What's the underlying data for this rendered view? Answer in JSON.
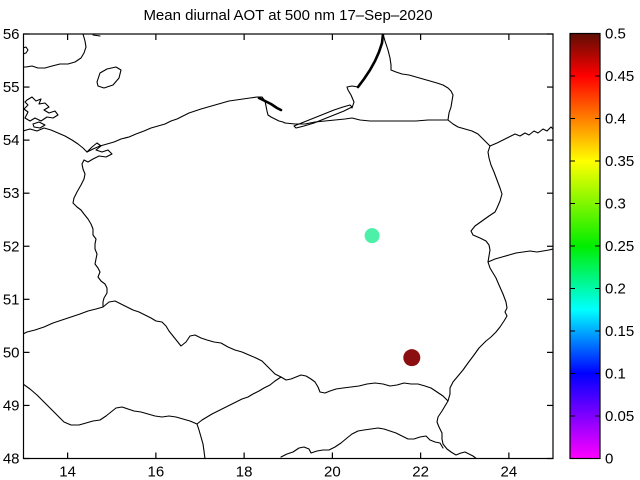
{
  "title": "Mean diurnal AOT at 500 nm 17–Sep–2020",
  "chart_data": {
    "type": "scatter",
    "title": "Mean diurnal AOT at 500 nm 17–Sep–2020",
    "map_region": "Poland with national borders and Baltic coastline",
    "grid": false,
    "legend": false,
    "x_axis": {
      "label": "",
      "range": [
        13,
        25
      ],
      "ticks": [
        14,
        16,
        18,
        20,
        22,
        24
      ],
      "tick_labels": [
        "14",
        "16",
        "18",
        "20",
        "22",
        "24"
      ]
    },
    "y_axis": {
      "label": "",
      "range": [
        48,
        56
      ],
      "ticks": [
        48,
        49,
        50,
        51,
        52,
        53,
        54,
        55,
        56
      ],
      "tick_labels": [
        "48",
        "49",
        "50",
        "51",
        "52",
        "53",
        "54",
        "55",
        "56"
      ]
    },
    "points": [
      {
        "lon": 20.9,
        "lat": 52.2,
        "value": 0.22,
        "color": "#4df0a8",
        "radius_px": 7.5
      },
      {
        "lon": 21.8,
        "lat": 49.9,
        "value": 0.5,
        "color": "#8b0e10",
        "radius_px": 8.5
      }
    ],
    "colorbar": {
      "range": [
        0,
        0.5
      ],
      "ticks": [
        0,
        0.05,
        0.1,
        0.15,
        0.2,
        0.25,
        0.3,
        0.35,
        0.4,
        0.45,
        0.5
      ],
      "tick_labels": [
        "0",
        "0.05",
        "0.1",
        "0.15",
        "0.2",
        "0.25",
        "0.3",
        "0.35",
        "0.4",
        "0.45",
        "0.5"
      ],
      "colormap_stops": [
        {
          "value": 0.0,
          "color": "#ff00ff"
        },
        {
          "value": 0.1,
          "color": "#0000ff"
        },
        {
          "value": 0.175,
          "color": "#00ffff"
        },
        {
          "value": 0.25,
          "color": "#00ee00"
        },
        {
          "value": 0.35,
          "color": "#ffff00"
        },
        {
          "value": 0.45,
          "color": "#ff0000"
        },
        {
          "value": 0.5,
          "color": "#5e0e04"
        }
      ]
    }
  }
}
